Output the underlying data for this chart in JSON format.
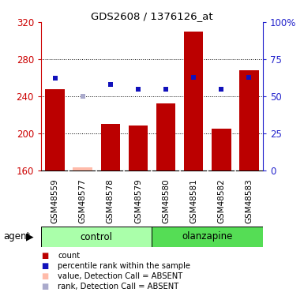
{
  "title": "GDS2608 / 1376126_at",
  "samples": [
    "GSM48559",
    "GSM48577",
    "GSM48578",
    "GSM48579",
    "GSM48580",
    "GSM48581",
    "GSM48582",
    "GSM48583"
  ],
  "bar_values": [
    248,
    163,
    210,
    208,
    232,
    310,
    205,
    268
  ],
  "rank_values": [
    62,
    50,
    58,
    55,
    55,
    63,
    55,
    63
  ],
  "absent": [
    false,
    true,
    false,
    false,
    false,
    false,
    false,
    false
  ],
  "bar_color_present": "#bb0000",
  "bar_color_absent": "#ffbbaa",
  "rank_color_present": "#1111bb",
  "rank_color_absent": "#aaaacc",
  "ylim_left": [
    160,
    320
  ],
  "ylim_right": [
    0,
    100
  ],
  "yticks_left": [
    160,
    200,
    240,
    280,
    320
  ],
  "yticks_right": [
    0,
    25,
    50,
    75,
    100
  ],
  "ytick_labels_right": [
    "0",
    "25",
    "50",
    "75",
    "100%"
  ],
  "ctrl_count": 4,
  "group_color_control": "#aaffaa",
  "group_color_olanzapine": "#55dd55",
  "background_color": "#ffffff",
  "gray_color": "#cccccc",
  "grid_color": "#000000",
  "bar_width": 0.7
}
